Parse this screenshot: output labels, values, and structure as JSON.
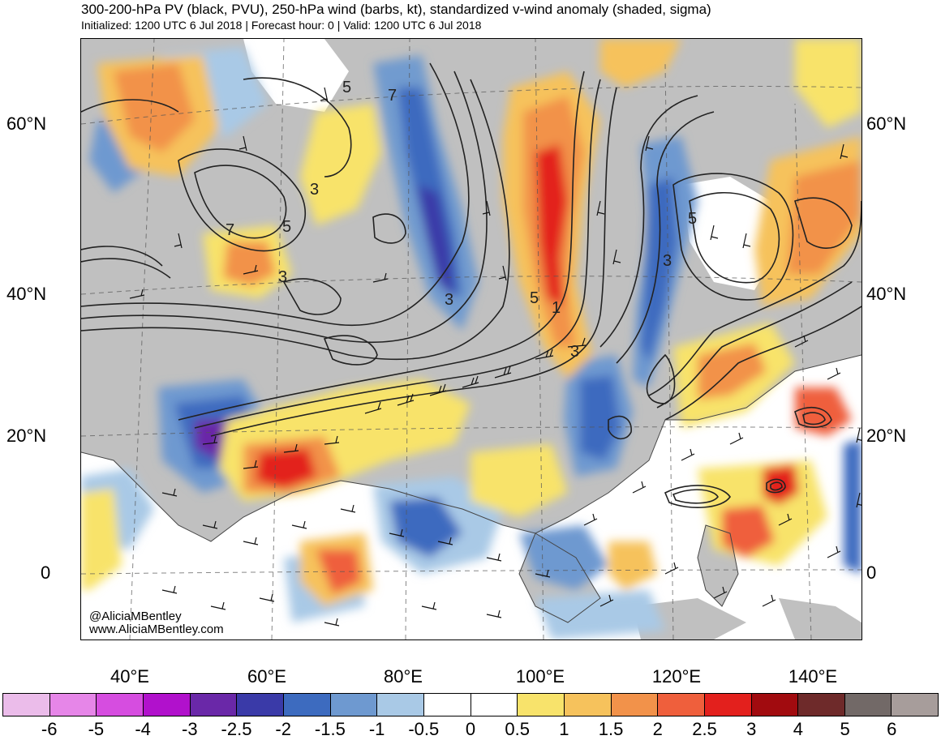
{
  "header": {
    "title": "300-200-hPa PV (black, PVU), 250-hPa wind (barbs, kt), standardized v-wind anomaly (shaded, sigma)",
    "subtitle": "Initialized: 1200 UTC 6 Jul 2018 | Forecast hour: 0 | Valid: 1200 UTC 6 Jul 2018"
  },
  "map": {
    "lat_labels": [
      "60°N",
      "40°N",
      "20°N",
      "0"
    ],
    "lon_labels": [
      "40°E",
      "60°E",
      "80°E",
      "100°E",
      "120°E",
      "140°E"
    ],
    "pv_contour_labels": [
      "5",
      "7",
      "3",
      "5",
      "7",
      "3",
      "3",
      "5",
      "1",
      "3",
      "3",
      "5"
    ],
    "watermark": [
      "@AliciaMBentley",
      "www.AliciaMBentley.com"
    ],
    "land_color": "#c0c0c0",
    "ocean_color": "#ffffff"
  },
  "colorbar": {
    "labels": [
      "-6",
      "-5",
      "-4",
      "-3",
      "-2.5",
      "-2",
      "-1.5",
      "-1",
      "-0.5",
      "0",
      "0.5",
      "1",
      "1.5",
      "2",
      "2.5",
      "3",
      "4",
      "5",
      "6"
    ],
    "colors": [
      "#ebbcea",
      "#e686e8",
      "#d64de0",
      "#b111cc",
      "#6a28a8",
      "#3a3aa8",
      "#3d6bbf",
      "#6e99d0",
      "#a9c9e6",
      "#ffffff",
      "#ffffff",
      "#f8e36b",
      "#f6c25c",
      "#f2924a",
      "#ef5f3c",
      "#e3201d",
      "#a10b0f",
      "#6e2a2a",
      "#726967",
      "#a79d9b"
    ]
  }
}
